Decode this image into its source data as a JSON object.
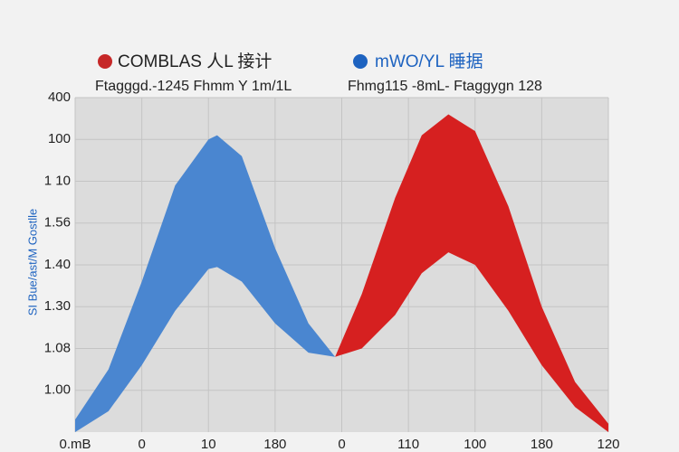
{
  "chart_data": {
    "type": "band",
    "legend_titles": [
      "COMBLAS 人L 接计",
      "mWO/YL 睡据"
    ],
    "subtitles": [
      "Ftagggd.-1245 Fhmm Y 1m/1L",
      "Fhmg115 -8mL- Ftaggygn 128"
    ],
    "y_axis_label": "SI Bue/ast/M Gostlle",
    "xlim": [
      0,
      8
    ],
    "ylim": [
      0,
      8
    ],
    "xticks": [
      {
        "value": 0,
        "label": "0.mB"
      },
      {
        "value": 1,
        "label": "0"
      },
      {
        "value": 2,
        "label": "10"
      },
      {
        "value": 3,
        "label": "180"
      },
      {
        "value": 4,
        "label": "0"
      },
      {
        "value": 5,
        "label": "110"
      },
      {
        "value": 6,
        "label": "100"
      },
      {
        "value": 7,
        "label": "180"
      },
      {
        "value": 8,
        "label": "120"
      }
    ],
    "yticks": [
      {
        "value": 8,
        "label": "400"
      },
      {
        "value": 7,
        "label": "100"
      },
      {
        "value": 6,
        "label": "1 10"
      },
      {
        "value": 5,
        "label": "1.56"
      },
      {
        "value": 4,
        "label": "1.40"
      },
      {
        "value": 3,
        "label": "1.30"
      },
      {
        "value": 2,
        "label": "1.08"
      },
      {
        "value": 1,
        "label": "1.00"
      }
    ],
    "grid": true,
    "series": [
      {
        "color": "#4a86d0",
        "x": [
          0,
          0.5,
          1,
          1.5,
          2,
          2.13,
          2.5,
          3,
          3.5,
          3.9
        ],
        "upper": [
          0.3,
          1.5,
          3.6,
          5.9,
          7.0,
          7.1,
          6.6,
          4.4,
          2.6,
          1.8
        ],
        "lower": [
          0,
          0.5,
          1.6,
          2.9,
          3.9,
          3.95,
          3.6,
          2.6,
          1.9,
          1.8
        ]
      },
      {
        "color": "#d62020",
        "x": [
          3.9,
          4.3,
          4.8,
          5.2,
          5.6,
          6,
          6.5,
          7,
          7.5,
          8
        ],
        "upper": [
          1.8,
          3.3,
          5.6,
          7.1,
          7.6,
          7.2,
          5.4,
          3.0,
          1.2,
          0.2
        ],
        "lower": [
          1.8,
          2.0,
          2.8,
          3.8,
          4.3,
          4.0,
          2.9,
          1.6,
          0.6,
          0
        ]
      }
    ]
  }
}
